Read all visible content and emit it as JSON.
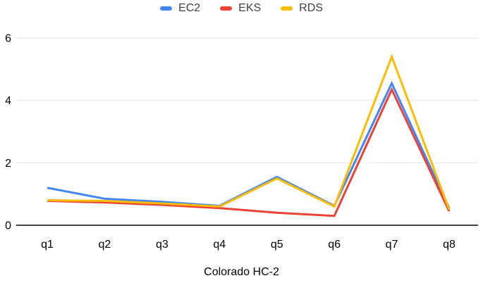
{
  "legend": {
    "items": [
      {
        "label": "EC2",
        "color": "#4285f4"
      },
      {
        "label": "EKS",
        "color": "#ea4335"
      },
      {
        "label": "RDS",
        "color": "#fbbc04"
      }
    ]
  },
  "chart_data": {
    "type": "line",
    "title": "",
    "xlabel": "Colorado HC-2",
    "ylabel": "",
    "categories": [
      "q1",
      "q2",
      "q3",
      "q4",
      "q5",
      "q6",
      "q7",
      "q8"
    ],
    "series": [
      {
        "name": "EC2",
        "color": "#4285f4",
        "values": [
          1.2,
          0.85,
          0.75,
          0.62,
          1.55,
          0.62,
          4.55,
          0.55
        ]
      },
      {
        "name": "EKS",
        "color": "#ea4335",
        "values": [
          0.78,
          0.73,
          0.65,
          0.55,
          0.4,
          0.3,
          4.35,
          0.45
        ]
      },
      {
        "name": "RDS",
        "color": "#fbbc04",
        "values": [
          0.8,
          0.78,
          0.7,
          0.6,
          1.5,
          0.6,
          5.4,
          0.5
        ]
      }
    ],
    "ylim": [
      0,
      6
    ],
    "yticks": [
      0,
      2,
      4,
      6
    ],
    "grid": true,
    "legend_position": "top",
    "colors": {
      "gridline": "#e6e6e6",
      "baseline": "#424242",
      "tick_label": "#000000",
      "legend_text": "#424242",
      "background": "#ffffff"
    }
  },
  "axis_title": "Colorado HC-2"
}
